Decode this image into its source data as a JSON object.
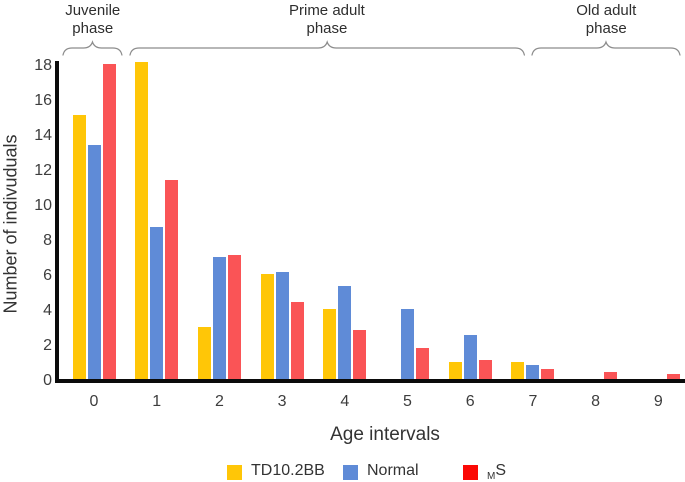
{
  "phases": [
    {
      "line1": "Juvenile",
      "line2": "phase",
      "from_cat": -0.49,
      "to_cat": 0.45
    },
    {
      "line1": "Prime adult",
      "line2": "phase",
      "from_cat": 0.57,
      "to_cat": 6.86
    },
    {
      "line1": "Old adult",
      "line2": "phase",
      "from_cat": 6.99,
      "to_cat": 9.35
    }
  ],
  "legend": {
    "items": [
      {
        "sub": "",
        "label": "TD10.2BB",
        "color": "#FFC607"
      },
      {
        "sub": "",
        "label": "Normal",
        "color": "#5F8BD7"
      },
      {
        "sub": "M",
        "label": "S",
        "color": "#FB0905"
      }
    ]
  },
  "chart_data": {
    "type": "bar",
    "categories": [
      "0",
      "1",
      "2",
      "3",
      "4",
      "5",
      "6",
      "7",
      "8",
      "9"
    ],
    "series": [
      {
        "name": "TD10.2BB",
        "color": "#FFC607",
        "values": [
          15.1,
          18.1,
          3,
          6,
          4,
          0,
          1,
          1,
          0,
          0
        ]
      },
      {
        "name": "Normal",
        "color": "#5F8BD7",
        "values": [
          13.4,
          8.7,
          7,
          6.1,
          5.3,
          4,
          2.5,
          0.8,
          0,
          0
        ]
      },
      {
        "name": "MS",
        "color": "#FA5456",
        "values": [
          18,
          11.4,
          7.1,
          4.4,
          2.8,
          1.8,
          1.1,
          0.6,
          0.4,
          0.3
        ]
      }
    ],
    "title": "",
    "xlabel": "Age intervals",
    "ylabel": "Number of indivuduals",
    "ylim": [
      0,
      18
    ],
    "ytick_step": 2,
    "grid": false,
    "legend_position": "bottom",
    "annotations": [
      "Juvenile phase",
      "Prime adult phase",
      "Old adult phase"
    ]
  }
}
